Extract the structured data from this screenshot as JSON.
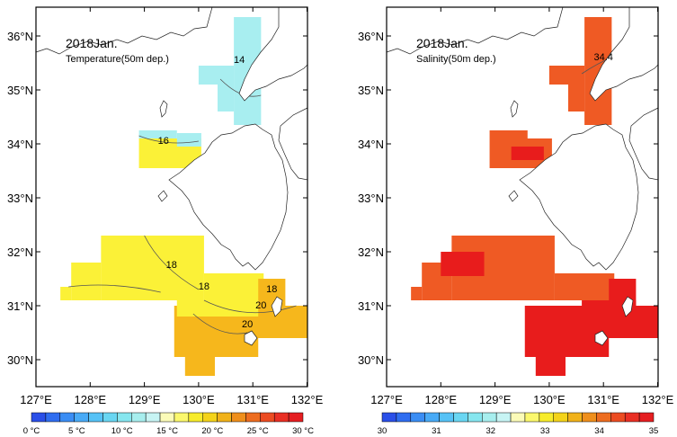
{
  "panels": [
    {
      "id": "temperature",
      "title": "2018Jan.",
      "subtitle": "Temperature(50m dep.)",
      "contour_labels": [
        "14",
        "16",
        "18",
        "18",
        "18",
        "20",
        "20"
      ],
      "colorbar_labels": [
        "0 °C",
        "5 °C",
        "10 °C",
        "15 °C",
        "20 °C",
        "25 °C",
        "30 °C"
      ],
      "colorbar_colors": [
        "#2a4fe8",
        "#2f6df0",
        "#3a8df4",
        "#48aaf6",
        "#56c2f6",
        "#69d6f2",
        "#86e6ef",
        "#a7eeee",
        "#c7f4f4",
        "#fbfbb8",
        "#fbf86d",
        "#f7ec2b",
        "#f4d31a",
        "#f1b21a",
        "#ef8f1c",
        "#ed6d20",
        "#ec4c22",
        "#e92f24",
        "#e51e21"
      ]
    },
    {
      "id": "salinity",
      "title": "2018Jan.",
      "subtitle": "Salinity(50m dep.)",
      "contour_labels": [
        "34.4"
      ],
      "colorbar_labels": [
        "30",
        "31",
        "32",
        "33",
        "34",
        "35"
      ],
      "colorbar_colors": [
        "#2a4fe8",
        "#2f6df0",
        "#3a8df4",
        "#48aaf6",
        "#56c2f6",
        "#69d6f2",
        "#86e6ef",
        "#a7eeee",
        "#c7f4f4",
        "#fbfbb8",
        "#fbf86d",
        "#f7ec2b",
        "#f4d31a",
        "#f1b21a",
        "#ef8f1c",
        "#ed6d20",
        "#ec4c22",
        "#e92f24",
        "#e51e21"
      ]
    }
  ],
  "lat_labels": [
    "36°N",
    "35°N",
    "34°N",
    "33°N",
    "32°N",
    "31°N",
    "30°N"
  ],
  "lon_labels": [
    "127°E",
    "128°E",
    "129°E",
    "130°E",
    "131°E",
    "132°E"
  ],
  "colors": {
    "cold": "#a8eef0",
    "yellow": "#fbf137",
    "orange": "#f6b71c",
    "sal_orange": "#ef5a24",
    "sal_red": "#e81c1c",
    "sal_deep": "#d10d16"
  }
}
